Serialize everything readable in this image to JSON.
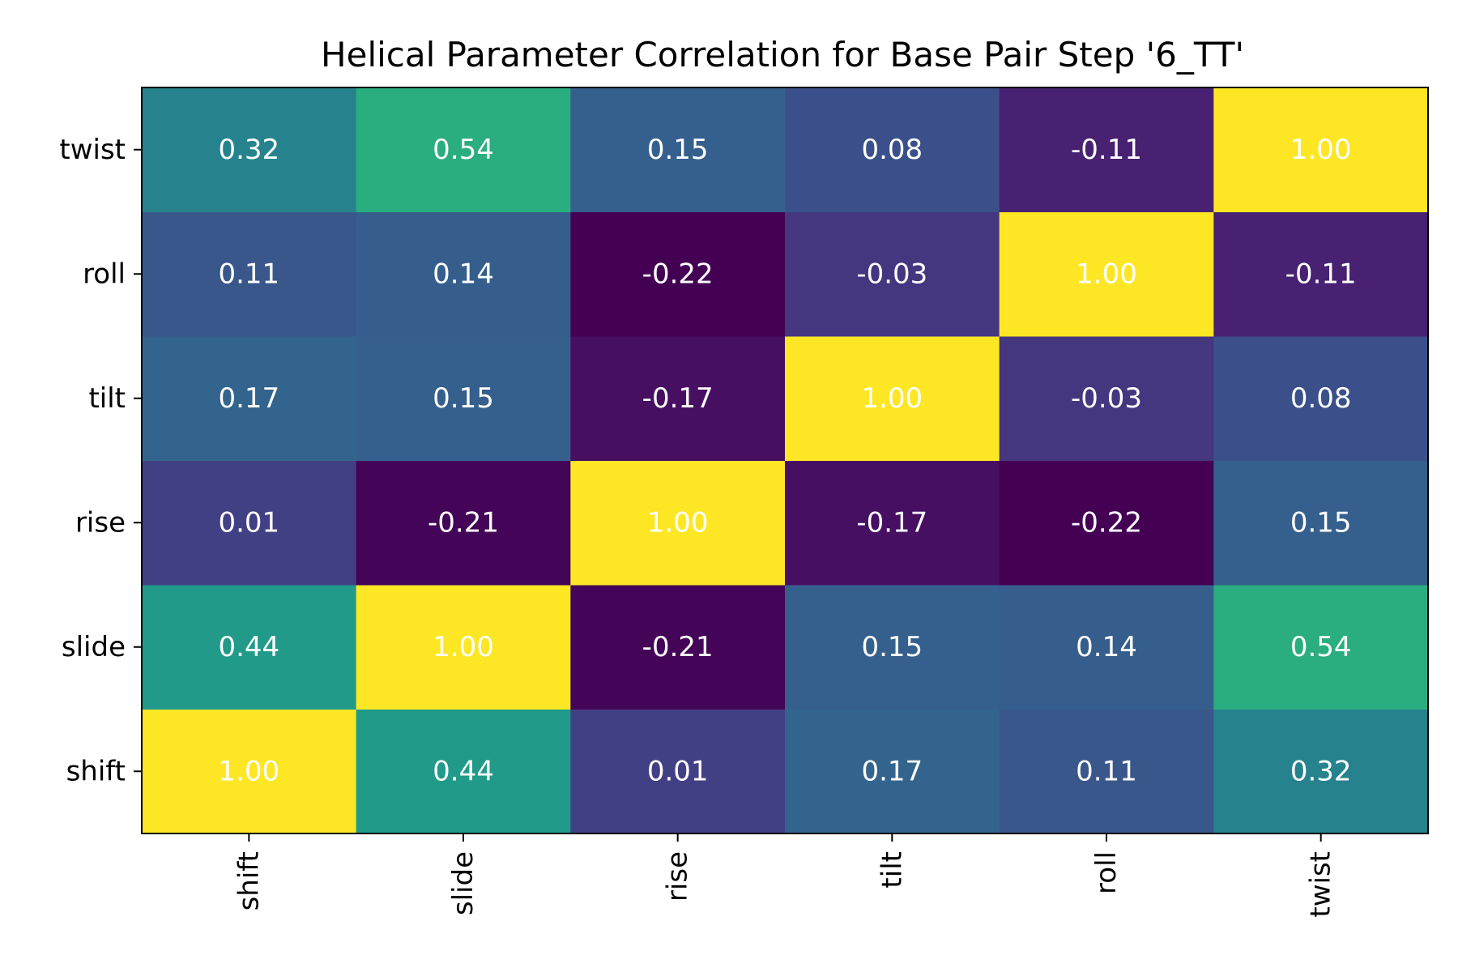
{
  "chart_data": {
    "type": "heatmap",
    "title": "Helical Parameter Correlation for Base Pair Step '6_TT'",
    "xlabel": "",
    "ylabel": "",
    "x_categories": [
      "shift",
      "slide",
      "rise",
      "tilt",
      "roll",
      "twist"
    ],
    "y_categories": [
      "shift",
      "slide",
      "rise",
      "tilt",
      "roll",
      "twist"
    ],
    "y_order": "bottom-to-top",
    "colormap": "viridis",
    "value_range": [
      -0.22,
      1.0
    ],
    "annotation_color": "#ffffff",
    "colorbar": false,
    "matrix": [
      [
        1.0,
        0.44,
        0.01,
        0.17,
        0.11,
        0.32
      ],
      [
        0.44,
        1.0,
        -0.21,
        0.15,
        0.14,
        0.54
      ],
      [
        0.01,
        -0.21,
        1.0,
        -0.17,
        -0.22,
        0.15
      ],
      [
        0.17,
        0.15,
        -0.17,
        1.0,
        -0.03,
        0.08
      ],
      [
        0.11,
        0.14,
        -0.22,
        -0.03,
        1.0,
        -0.11
      ],
      [
        0.32,
        0.54,
        0.15,
        0.08,
        -0.11,
        1.0
      ]
    ]
  }
}
